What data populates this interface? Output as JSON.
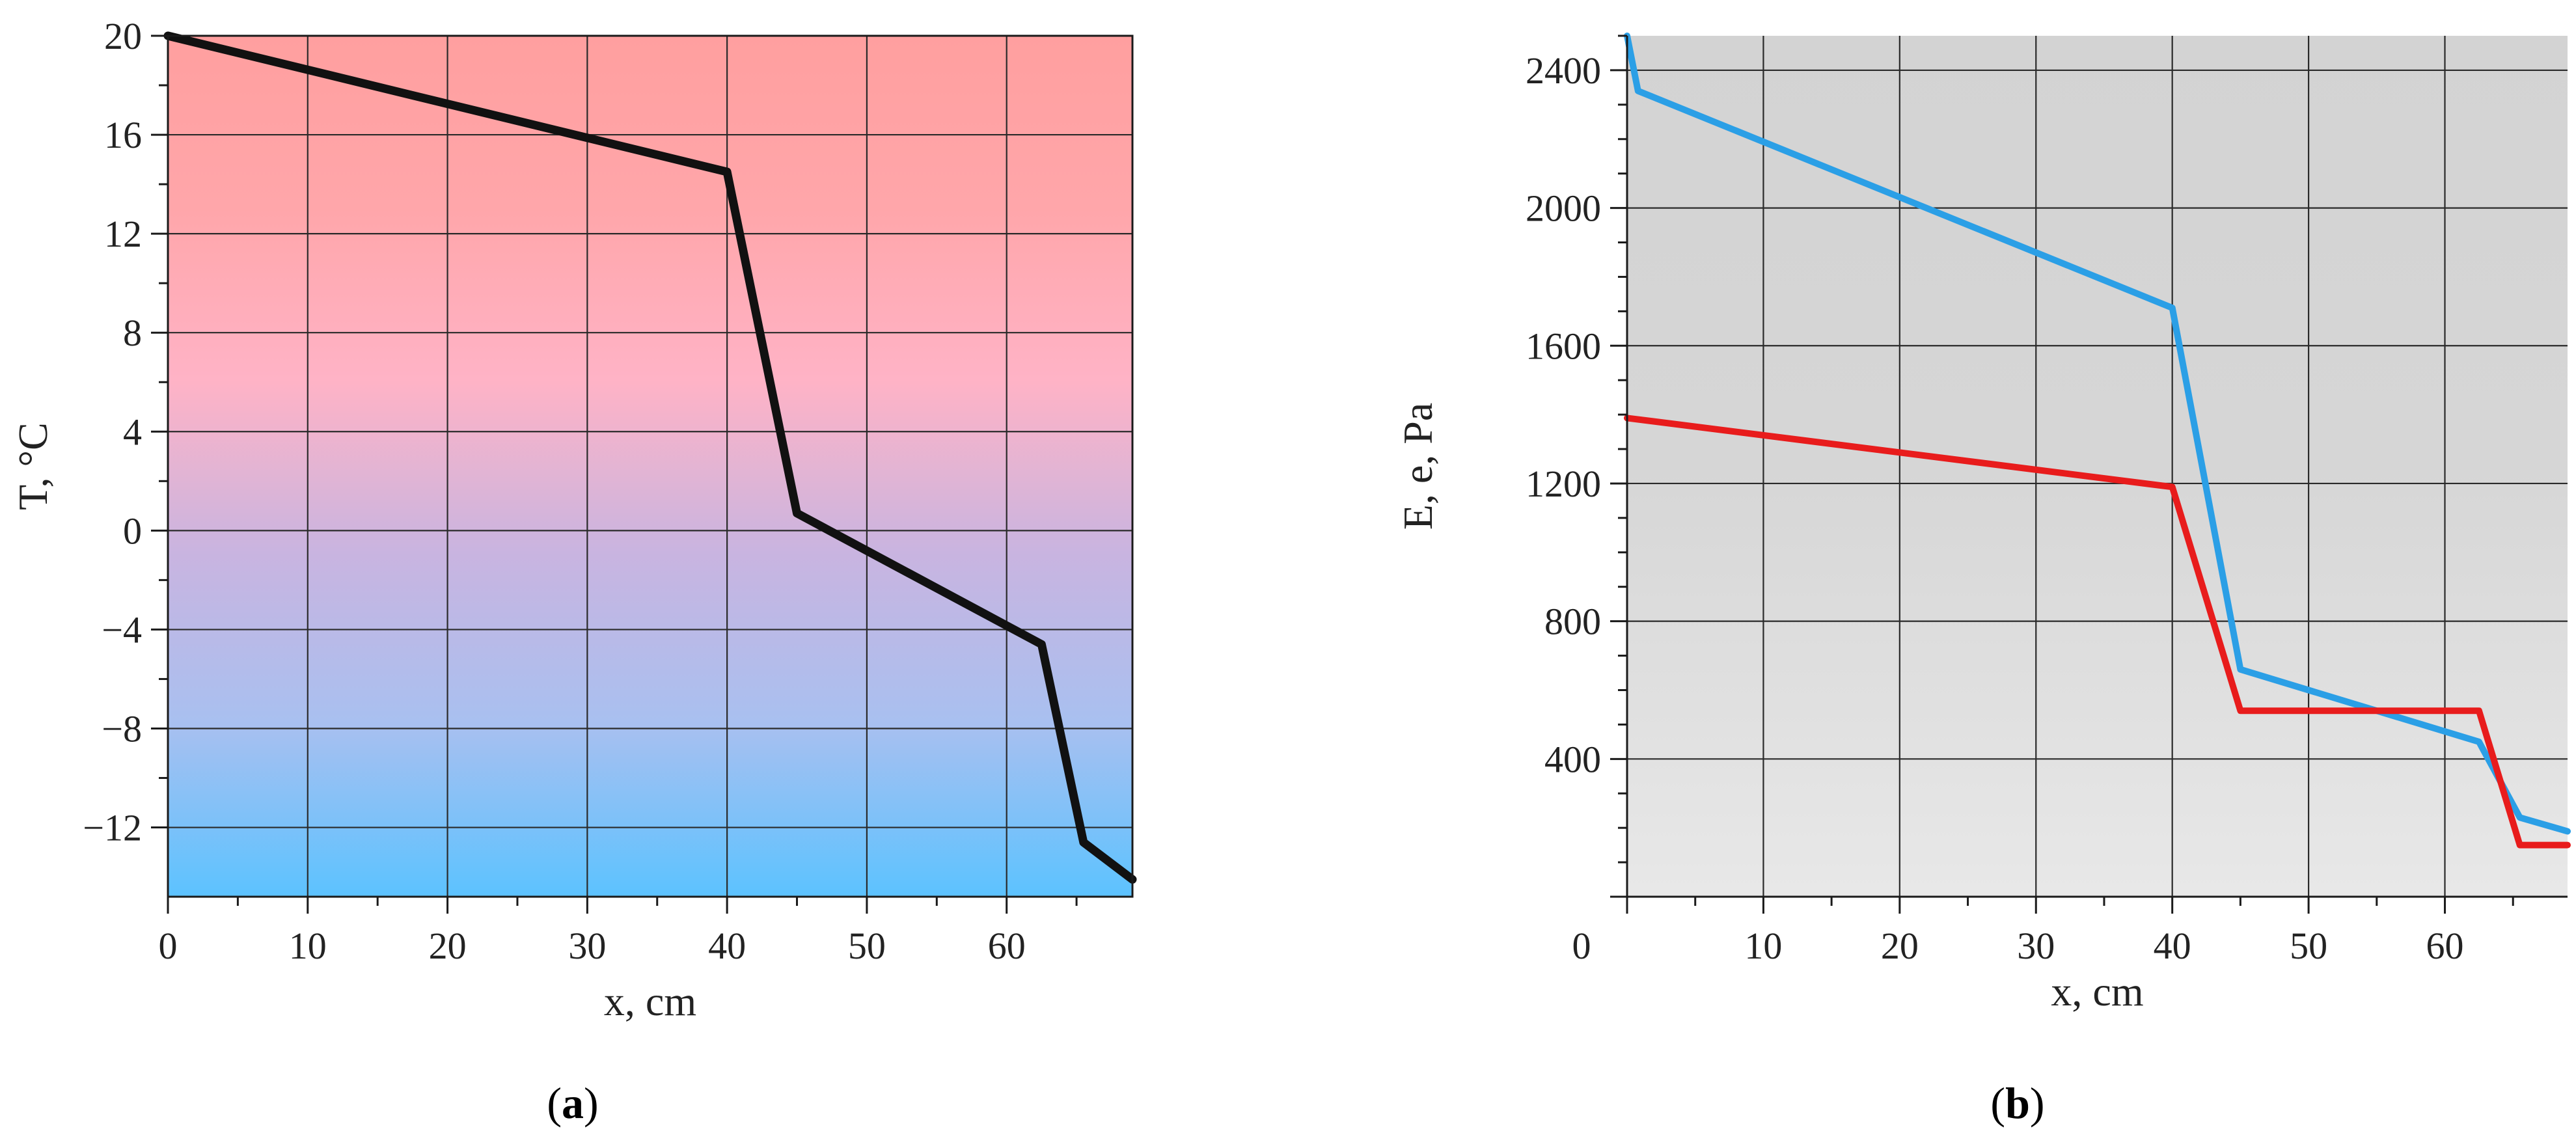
{
  "chart_data": [
    {
      "type": "line",
      "caption_letter": "a",
      "xlabel": "x, cm",
      "ylabel": "T, °C",
      "xlim": [
        0,
        69
      ],
      "ylim": [
        -14.8,
        20
      ],
      "x_ticks": [
        0,
        10,
        20,
        30,
        40,
        50,
        60
      ],
      "x_tick_labels": [
        "0",
        "10",
        "20",
        "30",
        "40",
        "50",
        "60"
      ],
      "y_ticks": [
        -12,
        -8,
        -4,
        0,
        4,
        8,
        12,
        16,
        20
      ],
      "y_tick_labels": [
        "−12",
        "−8",
        "−4",
        "0",
        "4",
        "8",
        "12",
        "16",
        "20"
      ],
      "grid": true,
      "background_gradient": [
        "#ff9f9f",
        "#ffa6aa",
        "#ffb3c6",
        "#c9b4e0",
        "#a8c0f0",
        "#5cc2ff"
      ],
      "series": [
        {
          "color": "#111111",
          "x": [
            0,
            40,
            45,
            62.5,
            65.5,
            69
          ],
          "y": [
            20,
            14.5,
            0.7,
            -4.6,
            -12.6,
            -14.1
          ]
        }
      ]
    },
    {
      "type": "line",
      "caption_letter": "b",
      "xlabel": "x, cm",
      "ylabel": "E, e, Pa",
      "xlim": [
        0,
        69
      ],
      "ylim": [
        0,
        2500
      ],
      "x_ticks": [
        0,
        10,
        20,
        30,
        40,
        50,
        60
      ],
      "x_tick_labels": [
        "0",
        "10",
        "20",
        "30",
        "40",
        "50",
        "60"
      ],
      "y_ticks": [
        400,
        800,
        1200,
        1600,
        2000,
        2400
      ],
      "y_tick_labels": [
        "400",
        "800",
        "1200",
        "1600",
        "2000",
        "2400"
      ],
      "grid": true,
      "background_gradient": [
        "#d3d3d3",
        "#d6d6d6",
        "#e8e8e8"
      ],
      "series": [
        {
          "color": "#2b9fe6",
          "x": [
            0,
            0.8,
            40,
            45,
            62.5,
            65.5,
            69
          ],
          "y": [
            2500,
            2340,
            1710,
            660,
            450,
            230,
            190
          ]
        },
        {
          "color": "#e81c1c",
          "x": [
            0,
            40,
            45,
            62.5,
            65.5,
            69
          ],
          "y": [
            1390,
            1190,
            540,
            540,
            150,
            150
          ]
        }
      ]
    }
  ]
}
